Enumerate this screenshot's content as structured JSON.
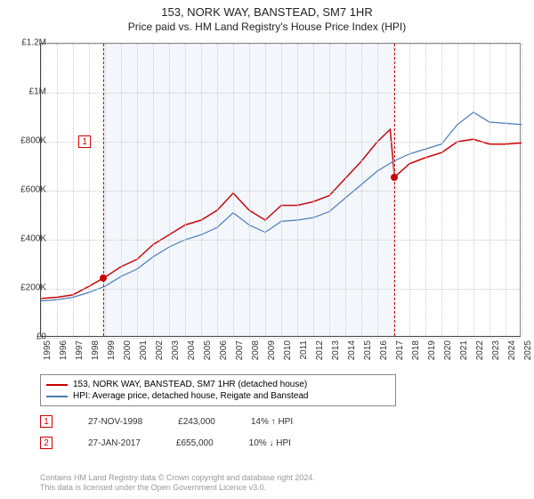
{
  "title": "153, NORK WAY, BANSTEAD, SM7 1HR",
  "subtitle": "Price paid vs. HM Land Registry's House Price Index (HPI)",
  "chart": {
    "type": "line",
    "ylim": [
      0,
      1200000
    ],
    "ytick_step": 200000,
    "yticks": [
      "£0",
      "£200K",
      "£400K",
      "£600K",
      "£800K",
      "£1M",
      "£1.2M"
    ],
    "xlim": [
      1995,
      2025
    ],
    "xticks": [
      "1995",
      "1996",
      "1997",
      "1998",
      "1999",
      "2000",
      "2001",
      "2002",
      "2003",
      "2004",
      "2005",
      "2006",
      "2007",
      "2008",
      "2009",
      "2010",
      "2011",
      "2012",
      "2013",
      "2014",
      "2015",
      "2016",
      "2017",
      "2018",
      "2019",
      "2020",
      "2021",
      "2022",
      "2023",
      "2024",
      "2025"
    ],
    "background_color": "#ffffff",
    "grid_color": "#cccccc",
    "shade_ranges": [
      {
        "from": 1998.9,
        "to": 2017.07,
        "color": "rgba(100,150,210,0.08)"
      }
    ],
    "dashed_verticals": [
      1998.9,
      2017.07
    ],
    "series": [
      {
        "name": "price_paid",
        "label": "153, NORK WAY, BANSTEAD, SM7 1HR (detached house)",
        "color": "#cc0000",
        "width": 1.5,
        "data": [
          [
            1995,
            160
          ],
          [
            1996,
            165
          ],
          [
            1997,
            175
          ],
          [
            1998,
            210
          ],
          [
            1998.9,
            243
          ],
          [
            2000,
            290
          ],
          [
            2001,
            320
          ],
          [
            2002,
            380
          ],
          [
            2003,
            420
          ],
          [
            2004,
            460
          ],
          [
            2005,
            480
          ],
          [
            2006,
            520
          ],
          [
            2007,
            590
          ],
          [
            2008,
            520
          ],
          [
            2009,
            480
          ],
          [
            2010,
            540
          ],
          [
            2011,
            540
          ],
          [
            2012,
            555
          ],
          [
            2013,
            580
          ],
          [
            2014,
            650
          ],
          [
            2015,
            720
          ],
          [
            2016,
            800
          ],
          [
            2016.8,
            850
          ],
          [
            2017.07,
            655
          ],
          [
            2018,
            710
          ],
          [
            2019,
            735
          ],
          [
            2020,
            755
          ],
          [
            2021,
            800
          ],
          [
            2022,
            810
          ],
          [
            2023,
            790
          ],
          [
            2024,
            790
          ],
          [
            2025,
            795
          ]
        ]
      },
      {
        "name": "hpi",
        "label": "HPI: Average price, detached house, Reigate and Banstead",
        "color": "#4a7ab8",
        "width": 1.2,
        "data": [
          [
            1995,
            150
          ],
          [
            1996,
            155
          ],
          [
            1997,
            165
          ],
          [
            1998,
            185
          ],
          [
            1999,
            210
          ],
          [
            2000,
            250
          ],
          [
            2001,
            280
          ],
          [
            2002,
            330
          ],
          [
            2003,
            370
          ],
          [
            2004,
            400
          ],
          [
            2005,
            420
          ],
          [
            2006,
            450
          ],
          [
            2007,
            510
          ],
          [
            2008,
            460
          ],
          [
            2009,
            430
          ],
          [
            2010,
            475
          ],
          [
            2011,
            480
          ],
          [
            2012,
            490
          ],
          [
            2013,
            515
          ],
          [
            2014,
            570
          ],
          [
            2015,
            625
          ],
          [
            2016,
            680
          ],
          [
            2017,
            720
          ],
          [
            2018,
            750
          ],
          [
            2019,
            770
          ],
          [
            2020,
            790
          ],
          [
            2021,
            870
          ],
          [
            2022,
            920
          ],
          [
            2023,
            880
          ],
          [
            2024,
            875
          ],
          [
            2025,
            870
          ]
        ]
      }
    ],
    "markers": [
      {
        "id": "1",
        "x": 1998.9,
        "y": 243,
        "box_offset_x": -28,
        "box_offset_y": -160
      },
      {
        "id": "2",
        "x": 2017.07,
        "y": 655,
        "box_offset_x": 12,
        "box_offset_y": -230
      }
    ]
  },
  "legend": {
    "items": [
      {
        "color": "#cc0000",
        "label": "153, NORK WAY, BANSTEAD, SM7 1HR (detached house)"
      },
      {
        "color": "#4a7ab8",
        "label": "HPI: Average price, detached house, Reigate and Banstead"
      }
    ]
  },
  "sales": [
    {
      "id": "1",
      "date": "27-NOV-1998",
      "price": "£243,000",
      "diff": "14%",
      "arrow": "↑",
      "diff_label": "HPI"
    },
    {
      "id": "2",
      "date": "27-JAN-2017",
      "price": "£655,000",
      "diff": "10%",
      "arrow": "↓",
      "diff_label": "HPI"
    }
  ],
  "footnote": {
    "line1": "Contains HM Land Registry data © Crown copyright and database right 2024.",
    "line2": "This data is licensed under the Open Government Licence v3.0."
  }
}
